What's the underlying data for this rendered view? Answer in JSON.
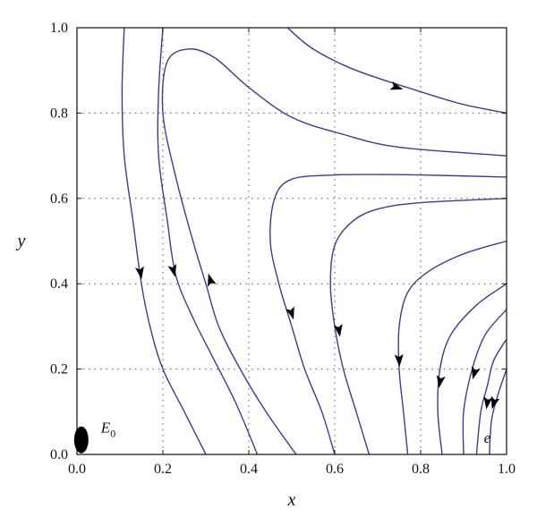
{
  "chart_data": {
    "type": "phase_portrait",
    "xlabel": "x",
    "ylabel": "y",
    "xlim": [
      0,
      1
    ],
    "ylim": [
      0,
      1
    ],
    "xticks": [
      0.0,
      0.2,
      0.4,
      0.6,
      0.8,
      1.0
    ],
    "yticks": [
      0.0,
      0.2,
      0.4,
      0.6,
      0.8,
      1.0
    ],
    "xtick_labels": [
      "0.0",
      "0.2",
      "0.4",
      "0.6",
      "0.8",
      "1.0"
    ],
    "ytick_labels": [
      "0.0",
      "0.2",
      "0.4",
      "0.6",
      "0.8",
      "1.0"
    ],
    "grid": "dotted",
    "line_color": "#3d3d8f",
    "annotations": [
      {
        "label": "E",
        "subscript": "0",
        "x": 0.01,
        "y": 0.03
      },
      {
        "label": "e",
        "x": 0.955,
        "y": 0.04
      }
    ],
    "trajectories": [
      {
        "points": [
          [
            0.11,
            1.0
          ],
          [
            0.105,
            0.85
          ],
          [
            0.11,
            0.7
          ],
          [
            0.13,
            0.55
          ],
          [
            0.15,
            0.4
          ],
          [
            0.17,
            0.3
          ],
          [
            0.2,
            0.2
          ],
          [
            0.25,
            0.1
          ],
          [
            0.3,
            0.0
          ]
        ],
        "arrow": {
          "x": 0.148,
          "y": 0.425
        }
      },
      {
        "points": [
          [
            0.2,
            1.0
          ],
          [
            0.19,
            0.85
          ],
          [
            0.19,
            0.7
          ],
          [
            0.21,
            0.55
          ],
          [
            0.23,
            0.42
          ],
          [
            0.27,
            0.32
          ],
          [
            0.32,
            0.22
          ],
          [
            0.37,
            0.12
          ],
          [
            0.42,
            0.0
          ]
        ],
        "arrow": {
          "x": 0.225,
          "y": 0.43
        }
      },
      {
        "points": [
          [
            0.51,
            0.0
          ],
          [
            0.44,
            0.1
          ],
          [
            0.38,
            0.2
          ],
          [
            0.33,
            0.3
          ],
          [
            0.3,
            0.4
          ],
          [
            0.27,
            0.5
          ],
          [
            0.23,
            0.65
          ],
          [
            0.2,
            0.8
          ],
          [
            0.21,
            0.92
          ],
          [
            0.26,
            0.95
          ],
          [
            0.32,
            0.93
          ],
          [
            0.4,
            0.86
          ],
          [
            0.5,
            0.79
          ],
          [
            0.62,
            0.75
          ],
          [
            0.75,
            0.72
          ],
          [
            1.0,
            0.7
          ]
        ],
        "arrow": {
          "x": 0.31,
          "y": 0.41
        }
      },
      {
        "points": [
          [
            0.49,
            1.0
          ],
          [
            0.55,
            0.95
          ],
          [
            0.65,
            0.9
          ],
          [
            0.8,
            0.85
          ],
          [
            0.9,
            0.82
          ],
          [
            1.0,
            0.8
          ]
        ],
        "arrow": {
          "x": 0.745,
          "y": 0.86
        }
      },
      {
        "points": [
          [
            1.0,
            0.65
          ],
          [
            0.8,
            0.655
          ],
          [
            0.7,
            0.656
          ],
          [
            0.6,
            0.655
          ],
          [
            0.5,
            0.645
          ],
          [
            0.46,
            0.6
          ],
          [
            0.45,
            0.5
          ],
          [
            0.47,
            0.4
          ],
          [
            0.5,
            0.3
          ],
          [
            0.53,
            0.2
          ],
          [
            0.57,
            0.1
          ],
          [
            0.6,
            0.0
          ]
        ],
        "arrow": {
          "x": 0.5,
          "y": 0.33
        }
      },
      {
        "points": [
          [
            1.0,
            0.6
          ],
          [
            0.8,
            0.59
          ],
          [
            0.7,
            0.575
          ],
          [
            0.64,
            0.545
          ],
          [
            0.6,
            0.49
          ],
          [
            0.59,
            0.4
          ],
          [
            0.6,
            0.3
          ],
          [
            0.62,
            0.2
          ],
          [
            0.65,
            0.1
          ],
          [
            0.68,
            0.0
          ]
        ],
        "arrow": {
          "x": 0.61,
          "y": 0.29
        }
      },
      {
        "points": [
          [
            1.0,
            0.5
          ],
          [
            0.9,
            0.47
          ],
          [
            0.82,
            0.43
          ],
          [
            0.77,
            0.38
          ],
          [
            0.75,
            0.3
          ],
          [
            0.75,
            0.2
          ],
          [
            0.76,
            0.1
          ],
          [
            0.77,
            0.0
          ]
        ],
        "arrow": {
          "x": 0.75,
          "y": 0.22
        }
      },
      {
        "points": [
          [
            1.0,
            0.4
          ],
          [
            0.93,
            0.35
          ],
          [
            0.87,
            0.28
          ],
          [
            0.845,
            0.2
          ],
          [
            0.84,
            0.1
          ],
          [
            0.85,
            0.0
          ]
        ],
        "arrow": {
          "x": 0.845,
          "y": 0.17
        }
      },
      {
        "points": [
          [
            1.0,
            0.34
          ],
          [
            0.95,
            0.28
          ],
          [
            0.92,
            0.2
          ],
          [
            0.9,
            0.1
          ],
          [
            0.9,
            0.0
          ]
        ],
        "arrow": {
          "x": 0.925,
          "y": 0.19
        }
      },
      {
        "points": [
          [
            1.0,
            0.27
          ],
          [
            0.97,
            0.22
          ],
          [
            0.955,
            0.16
          ],
          [
            0.94,
            0.1
          ],
          [
            0.93,
            0.0
          ]
        ],
        "arrow": {
          "x": 0.955,
          "y": 0.12
        }
      },
      {
        "points": [
          [
            1.0,
            0.2
          ],
          [
            0.98,
            0.14
          ],
          [
            0.965,
            0.08
          ],
          [
            0.96,
            0.0
          ]
        ],
        "arrow": {
          "x": 0.97,
          "y": 0.12
        }
      }
    ]
  }
}
